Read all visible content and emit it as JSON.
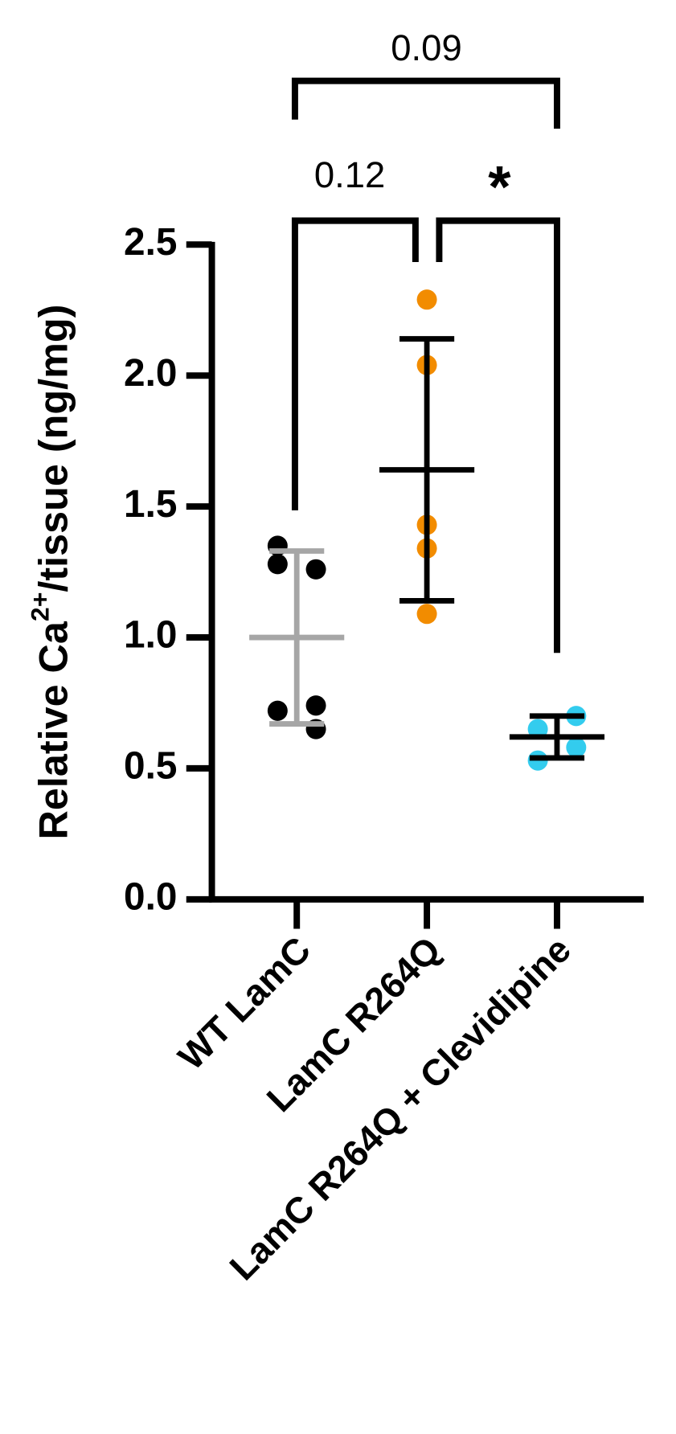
{
  "chart_data": {
    "type": "scatter",
    "ylabel": {
      "text": "Relative Ca",
      "sup": "2+",
      "rest": "/tissue (ng/mg)"
    },
    "categories": [
      "WT LamC",
      "LamC R264Q",
      "LamC R264Q + Clevidipine"
    ],
    "points": [
      [
        1.35,
        1.26,
        1.28,
        0.74,
        0.72,
        0.65
      ],
      [
        2.29,
        2.04,
        1.43,
        1.34,
        1.09
      ],
      [
        0.65,
        0.7,
        0.53,
        0.58
      ]
    ],
    "means": [
      1.0,
      1.64,
      0.62
    ],
    "sd": [
      0.33,
      0.5,
      0.08
    ],
    "colors": [
      "#000000",
      "#f28c00",
      "#33ccee"
    ],
    "error_colors": [
      "#a6a6a6",
      "#000000",
      "#000000"
    ],
    "ylim": [
      0,
      2.5
    ],
    "yticks": [
      {
        "value": 0,
        "label": "0.0"
      },
      0.5,
      {
        "value": 1,
        "label": "1.0"
      },
      1.5,
      {
        "value": 2,
        "label": "2.0"
      },
      2.5
    ],
    "annotations": [
      "0.12",
      "*",
      "0.09"
    ]
  }
}
